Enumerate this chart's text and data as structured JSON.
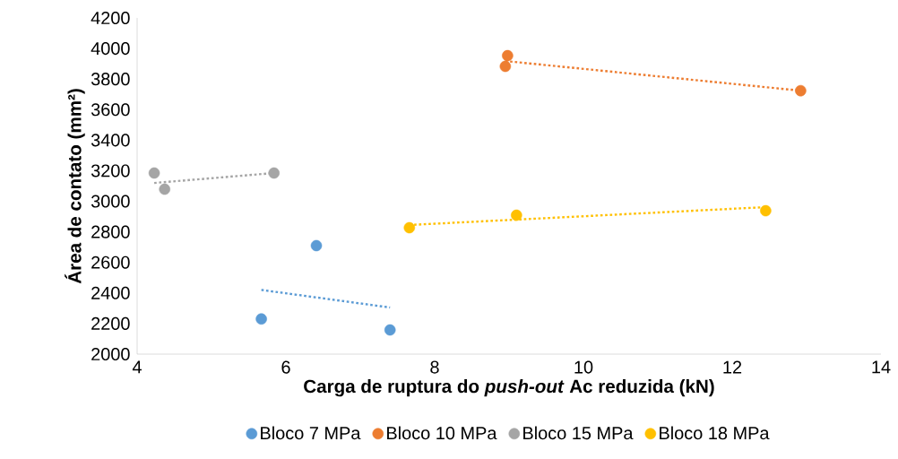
{
  "chart_data": {
    "type": "scatter",
    "xlabel": "Carga de ruptura do *push-out* Ac reduzida (kN)",
    "ylabel": "Área de contato (mm²)",
    "xlim": [
      4,
      14
    ],
    "ylim": [
      2000,
      4200
    ],
    "xticks": [
      4,
      6,
      8,
      10,
      12,
      14
    ],
    "yticks": [
      2000,
      2200,
      2400,
      2600,
      2800,
      3000,
      3200,
      3400,
      3600,
      3800,
      4000,
      4200
    ],
    "grid": false,
    "legend": "bottom",
    "series": [
      {
        "name": "Bloco 7 MPa",
        "color": "#5b9bd5",
        "marker": "circle",
        "x": [
          5.67,
          6.41,
          7.4
        ],
        "values": [
          2230,
          2710,
          2158
        ]
      },
      {
        "name": "Bloco 10 MPa",
        "color": "#ed7d31",
        "marker": "circle",
        "x": [
          8.98,
          8.95,
          12.92
        ],
        "values": [
          3953,
          3883,
          3724
        ]
      },
      {
        "name": "Bloco 15 MPa",
        "color": "#a5a5a5",
        "marker": "circle",
        "x": [
          4.23,
          4.37,
          5.84
        ],
        "values": [
          3185,
          3079,
          3185
        ]
      },
      {
        "name": "Bloco 18 MPa",
        "color": "#ffc000",
        "marker": "circle",
        "x": [
          7.66,
          9.1,
          12.45
        ],
        "values": [
          2827,
          2909,
          2938
        ]
      },
      {
        "type": "line",
        "line_style": "dotted",
        "marker": "none",
        "color": "#5b9bd5",
        "x": [
          5.67,
          7.4
        ],
        "values": [
          2420,
          2305
        ]
      },
      {
        "type": "line",
        "line_style": "dotted",
        "marker": "none",
        "color": "#ed7d31",
        "x": [
          8.95,
          12.92
        ],
        "values": [
          3918,
          3724
        ]
      },
      {
        "type": "line",
        "line_style": "dotted",
        "marker": "none",
        "color": "#a5a5a5",
        "x": [
          4.23,
          5.84
        ],
        "values": [
          3120,
          3185
        ]
      },
      {
        "type": "line",
        "line_style": "dotted",
        "marker": "none",
        "color": "#ffc000",
        "x": [
          7.66,
          12.45
        ],
        "values": [
          2845,
          2962
        ]
      }
    ]
  }
}
